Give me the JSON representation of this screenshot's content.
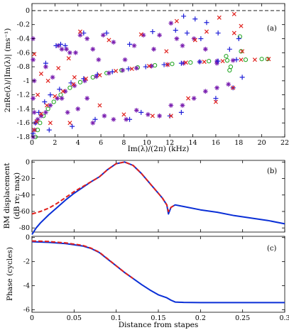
{
  "chart_data": [
    {
      "panel": "(a)",
      "type": "scatter",
      "xlabel": "Im(λ)/(2π) (kHz)",
      "ylabel": "2πRe(λ)/|Im(λ)| (ms⁻¹)",
      "xlim": [
        0,
        22
      ],
      "ylim": [
        -1.8,
        0.1
      ],
      "xticks": [
        "0",
        "2",
        "4",
        "6",
        "8",
        "10",
        "12",
        "14",
        "16",
        "18",
        "20",
        "22"
      ],
      "yticks": [
        "0",
        "-0.2",
        "-0.4",
        "-0.6",
        "-0.8",
        "-1",
        "-1.2",
        "-1.4",
        "-1.6",
        "-1.8"
      ],
      "reference_line": {
        "y": 0,
        "style": "dashed",
        "color": "#000000"
      },
      "colors": {
        "plus": "#1f1fd8",
        "cross": "#e0201c",
        "star": "#7a1fb0",
        "circle": "#1aa31a"
      },
      "series": [
        {
          "marker": "circle",
          "values": [
            [
              0.3,
              -1.8
            ],
            [
              0.5,
              -1.7
            ],
            [
              0.7,
              -1.6
            ],
            [
              1,
              -1.5
            ],
            [
              1.4,
              -1.4
            ],
            [
              1.9,
              -1.3
            ],
            [
              2.5,
              -1.2
            ],
            [
              3.3,
              -1.1
            ],
            [
              4.2,
              -1.02
            ],
            [
              5.3,
              -0.95
            ],
            [
              6.5,
              -0.89
            ],
            [
              7.8,
              -0.85
            ],
            [
              9.2,
              -0.81
            ],
            [
              10.7,
              -0.78
            ],
            [
              12.2,
              -0.76
            ],
            [
              13.8,
              -0.74
            ],
            [
              15.4,
              -0.72
            ],
            [
              17,
              -0.71
            ],
            [
              18.6,
              -0.7
            ],
            [
              20,
              -0.69
            ],
            [
              20.5,
              -0.69
            ],
            [
              16.9,
              -0.65
            ],
            [
              17.3,
              -0.8
            ],
            [
              17.2,
              -0.85
            ],
            [
              18.1,
              -0.37
            ],
            [
              18.2,
              -0.58
            ]
          ]
        },
        {
          "marker": "star",
          "values": [
            [
              0.1,
              -1.8
            ],
            [
              0.2,
              -1.7
            ],
            [
              0.3,
              -1.6
            ],
            [
              0.5,
              -1.55
            ],
            [
              0.8,
              -1.5
            ],
            [
              1.2,
              -1.45
            ],
            [
              1.6,
              -1.35
            ],
            [
              2.2,
              -1.25
            ],
            [
              2.9,
              -1.15
            ],
            [
              3.7,
              -1.07
            ],
            [
              4.6,
              -1
            ],
            [
              5.6,
              -0.94
            ],
            [
              6.7,
              -0.89
            ],
            [
              7.9,
              -0.85
            ],
            [
              9.1,
              -0.82
            ],
            [
              10.4,
              -0.79
            ],
            [
              11.8,
              -0.77
            ],
            [
              13.2,
              -0.75
            ],
            [
              14.6,
              -0.73
            ],
            [
              16.1,
              -0.72
            ],
            [
              17.5,
              -0.71
            ],
            [
              0.1,
              -0.4
            ],
            [
              0.1,
              -0.7
            ],
            [
              0.2,
              -1
            ],
            [
              0.1,
              -1.25
            ],
            [
              0.2,
              -1.45
            ],
            [
              1.2,
              -0.8
            ],
            [
              1.8,
              -0.95
            ],
            [
              2.3,
              -0.5
            ],
            [
              2.6,
              -0.55
            ],
            [
              3,
              -0.55
            ],
            [
              3.3,
              -0.6
            ],
            [
              3.8,
              -0.6
            ],
            [
              4.2,
              -0.35
            ],
            [
              4.8,
              -0.4
            ],
            [
              5.3,
              -0.55
            ],
            [
              5.8,
              -0.7
            ],
            [
              6.2,
              -0.35
            ],
            [
              7.1,
              -0.45
            ],
            [
              8.1,
              -0.7
            ],
            [
              8.9,
              -0.5
            ],
            [
              9.7,
              -0.35
            ],
            [
              10.6,
              -0.55
            ],
            [
              11.1,
              -0.35
            ],
            [
              12.1,
              -0.18
            ],
            [
              12.6,
              -0.4
            ],
            [
              13.1,
              -0.5
            ],
            [
              14.1,
              -0.4
            ],
            [
              15.1,
              -0.55
            ],
            [
              16.1,
              -0.75
            ],
            [
              2.6,
              -1.25
            ],
            [
              3.1,
              -1.45
            ],
            [
              4,
              -1.4
            ],
            [
              4.8,
              -1.25
            ],
            [
              5.3,
              -1.6
            ],
            [
              6.3,
              -1.5
            ],
            [
              7.1,
              -1.55
            ],
            [
              8.2,
              -1.55
            ],
            [
              9.1,
              -1.42
            ],
            [
              10.1,
              -1.48
            ],
            [
              11.1,
              -1.5
            ],
            [
              12.1,
              -1.35
            ],
            [
              13.1,
              -1.35
            ],
            [
              14.1,
              -1.25
            ],
            [
              15.1,
              -1.15
            ],
            [
              16.1,
              -1.1
            ],
            [
              17.1,
              -1.05
            ]
          ]
        },
        {
          "marker": "plus",
          "values": [
            [
              0.1,
              -1.75
            ],
            [
              0.3,
              -1.6
            ],
            [
              0.6,
              -1.45
            ],
            [
              1.1,
              -1.3
            ],
            [
              1.6,
              -1.2
            ],
            [
              2.4,
              -1.12
            ],
            [
              3.4,
              -1.03
            ],
            [
              4.5,
              -0.97
            ],
            [
              5.7,
              -0.91
            ],
            [
              7,
              -0.87
            ],
            [
              8.4,
              -0.83
            ],
            [
              9.9,
              -0.8
            ],
            [
              11.5,
              -0.77
            ],
            [
              13,
              -0.75
            ],
            [
              14.6,
              -0.73
            ],
            [
              16.2,
              -0.72
            ],
            [
              17.8,
              -0.7
            ],
            [
              2.1,
              -0.5
            ],
            [
              2.5,
              -0.48
            ],
            [
              2.9,
              -0.5
            ],
            [
              1.2,
              -0.75
            ],
            [
              4.5,
              -0.32
            ],
            [
              6.5,
              -0.32
            ],
            [
              8.5,
              -0.48
            ],
            [
              10.5,
              -0.3
            ],
            [
              12.5,
              -0.28
            ],
            [
              13.2,
              -0.08
            ],
            [
              13.5,
              -0.32
            ],
            [
              14.2,
              -0.12
            ],
            [
              14.7,
              -0.4
            ],
            [
              15.2,
              -0.17
            ],
            [
              16.2,
              -0.32
            ],
            [
              17.2,
              -0.55
            ],
            [
              18,
              -0.4
            ],
            [
              18.3,
              -0.95
            ],
            [
              1.5,
              -1.7
            ],
            [
              3.5,
              -1.65
            ],
            [
              5.5,
              -1.55
            ],
            [
              8.5,
              -1.55
            ],
            [
              9.5,
              -1.45
            ],
            [
              12,
              -1.5
            ],
            [
              13,
              -1.45
            ],
            [
              16,
              -1.25
            ],
            [
              17.5,
              -1.1
            ]
          ]
        },
        {
          "marker": "cross",
          "values": [
            [
              0.2,
              -1.7
            ],
            [
              0.4,
              -1.58
            ],
            [
              0.8,
              -1.47
            ],
            [
              1.3,
              -1.35
            ],
            [
              2,
              -1.22
            ],
            [
              2.7,
              -1.15
            ],
            [
              3.6,
              -1.05
            ],
            [
              4.7,
              -0.97
            ],
            [
              5.9,
              -0.92
            ],
            [
              7.3,
              -0.86
            ],
            [
              8.7,
              -0.83
            ],
            [
              10.2,
              -0.79
            ],
            [
              11.8,
              -0.77
            ],
            [
              13.4,
              -0.74
            ],
            [
              15,
              -0.73
            ],
            [
              16.6,
              -0.72
            ],
            [
              18.2,
              -0.7
            ],
            [
              19.4,
              -0.7
            ],
            [
              20.6,
              -0.69
            ],
            [
              0.8,
              -0.9
            ],
            [
              1.4,
              -1
            ],
            [
              2.3,
              -0.82
            ],
            [
              3.2,
              -0.68
            ],
            [
              3.7,
              -0.95
            ],
            [
              4.2,
              -0.3
            ],
            [
              6.7,
              -0.42
            ],
            [
              9.5,
              -0.34
            ],
            [
              11.7,
              -0.58
            ],
            [
              12.6,
              -0.15
            ],
            [
              14.2,
              -0.42
            ],
            [
              15.2,
              -0.3
            ],
            [
              16.3,
              -0.1
            ],
            [
              17.6,
              -0.32
            ],
            [
              18.2,
              -0.22
            ],
            [
              17.6,
              -0.05
            ],
            [
              18.3,
              -0.58
            ],
            [
              1.6,
              -1.6
            ],
            [
              3.3,
              -1.6
            ],
            [
              5.9,
              -1.35
            ],
            [
              8,
              -1.48
            ],
            [
              10.5,
              -1.5
            ],
            [
              12.1,
              -1.5
            ],
            [
              13.6,
              -1.25
            ],
            [
              16,
              -1.3
            ],
            [
              17.5,
              -1.1
            ],
            [
              0.2,
              -0.62
            ],
            [
              0.5,
              -1.2
            ]
          ]
        }
      ]
    },
    {
      "panel": "(b)",
      "type": "line",
      "xlabel": "",
      "ylabel": "BM displacement (dB re: max)",
      "xlim": [
        0,
        0.3
      ],
      "ylim": [
        -85,
        2
      ],
      "yticks": [
        "0",
        "-20",
        "-40",
        "-60",
        "-80"
      ],
      "series": [
        {
          "color": "#0a2fd6",
          "style": "solid",
          "x": [
            0,
            0.005,
            0.01,
            0.02,
            0.03,
            0.04,
            0.05,
            0.06,
            0.07,
            0.08,
            0.09,
            0.1,
            0.11,
            0.12,
            0.13,
            0.14,
            0.15,
            0.155,
            0.16,
            0.162,
            0.165,
            0.17,
            0.18,
            0.2,
            0.22,
            0.24,
            0.26,
            0.28,
            0.3
          ],
          "y": [
            -88,
            -80,
            -74,
            -64,
            -55,
            -46,
            -38,
            -31,
            -24,
            -18,
            -9,
            -2,
            0,
            -4,
            -14,
            -26,
            -38,
            -44,
            -52,
            -63,
            -55,
            -52,
            -54,
            -58,
            -61,
            -65,
            -68,
            -71,
            -75
          ]
        },
        {
          "color": "#e0201c",
          "style": "dashed",
          "x": [
            0,
            0.01,
            0.02,
            0.03,
            0.04,
            0.05,
            0.06,
            0.07,
            0.08,
            0.09,
            0.1,
            0.11,
            0.12,
            0.13,
            0.14,
            0.15,
            0.155,
            0.16,
            0.162,
            0.165,
            0.17
          ],
          "y": [
            -63,
            -60,
            -56,
            -50,
            -43,
            -36,
            -30,
            -24,
            -18,
            -9,
            -2,
            0,
            -4,
            -14,
            -26,
            -38,
            -44,
            -52,
            -60,
            -55,
            -52
          ]
        }
      ]
    },
    {
      "panel": "(c)",
      "type": "line",
      "xlabel": "Distance from stapes",
      "ylabel": "Phase (cycles)",
      "xlim": [
        0,
        0.3
      ],
      "ylim": [
        -6.2,
        0.1
      ],
      "xticks": [
        "0",
        "0.05",
        "0.1",
        "0.15",
        "0.2",
        "0.25",
        "0.3"
      ],
      "yticks": [
        "0",
        "-2",
        "-4",
        "-6"
      ],
      "series": [
        {
          "color": "#0a2fd6",
          "style": "solid",
          "x": [
            0,
            0.02,
            0.04,
            0.06,
            0.07,
            0.08,
            0.09,
            0.1,
            0.11,
            0.12,
            0.13,
            0.14,
            0.15,
            0.16,
            0.165,
            0.17,
            0.18,
            0.2,
            0.25,
            0.3
          ],
          "y": [
            -0.35,
            -0.4,
            -0.5,
            -0.7,
            -0.9,
            -1.25,
            -1.8,
            -2.35,
            -2.9,
            -3.4,
            -3.9,
            -4.35,
            -4.75,
            -5.0,
            -5.2,
            -5.35,
            -5.38,
            -5.4,
            -5.4,
            -5.4
          ]
        },
        {
          "color": "#e0201c",
          "style": "dashed",
          "x": [
            0,
            0.02,
            0.04,
            0.06,
            0.07,
            0.08,
            0.09,
            0.1,
            0.11,
            0.12
          ],
          "y": [
            -0.28,
            -0.33,
            -0.45,
            -0.65,
            -0.88,
            -1.22,
            -1.78,
            -2.35,
            -2.9,
            -3.4
          ]
        }
      ]
    }
  ]
}
